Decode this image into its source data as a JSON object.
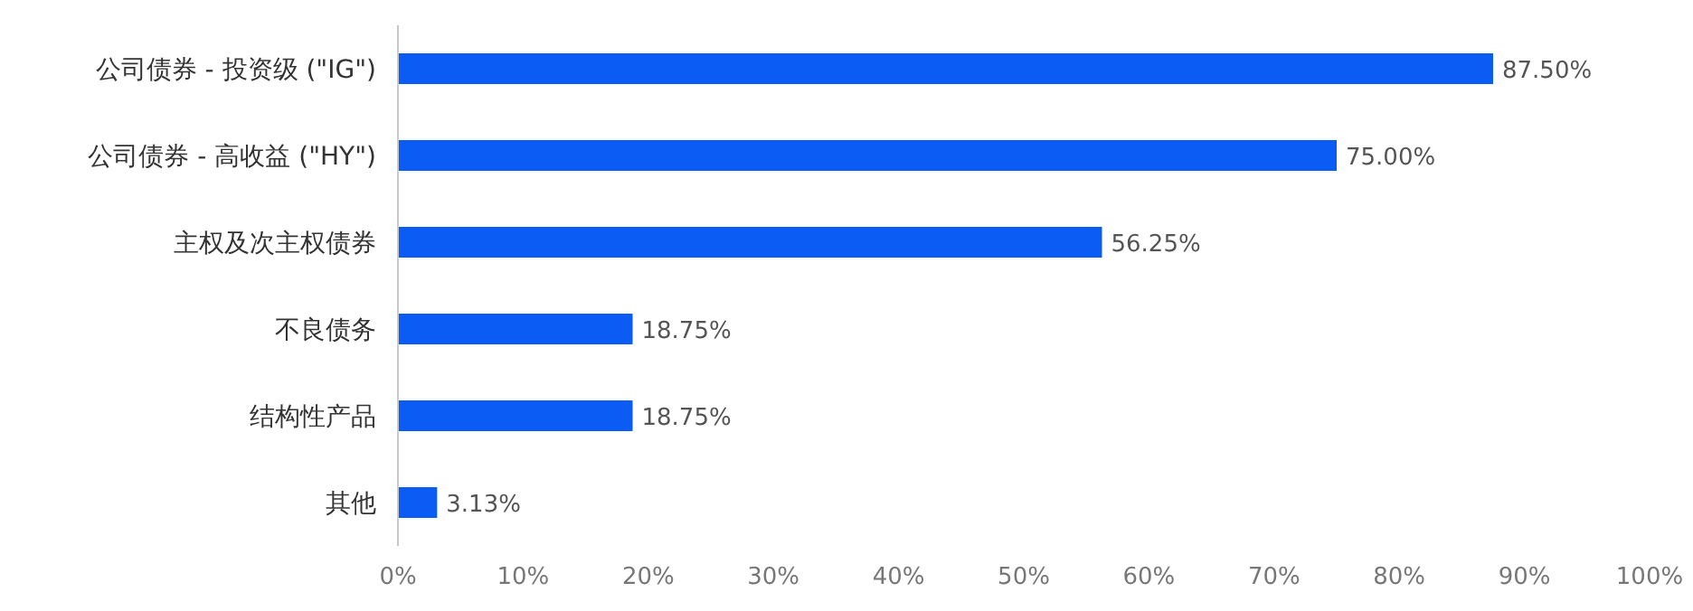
{
  "chart_data": {
    "type": "bar",
    "orientation": "horizontal",
    "categories": [
      "公司债券 - 投资级 (\"IG\")",
      "公司债券 - 高收益 (\"HY\")",
      "主权及次主权债券",
      "不良债务",
      "结构性产品",
      "其他"
    ],
    "values": [
      87.5,
      75.0,
      56.25,
      18.75,
      18.75,
      3.13
    ],
    "value_labels": [
      "87.50%",
      "75.00%",
      "56.25%",
      "18.75%",
      "18.75%",
      "3.13%"
    ],
    "color": "#0b5cf4",
    "xlim": [
      0,
      100
    ],
    "xticks": [
      {
        "value": 0,
        "label": "0%"
      },
      {
        "value": 10,
        "label": "10%"
      },
      {
        "value": 20,
        "label": "20%"
      },
      {
        "value": 30,
        "label": "30%"
      },
      {
        "value": 40,
        "label": "40%"
      },
      {
        "value": 50,
        "label": "50%"
      },
      {
        "value": 60,
        "label": "60%"
      },
      {
        "value": 70,
        "label": "70%"
      },
      {
        "value": 80,
        "label": "80%"
      },
      {
        "value": 90,
        "label": "90%"
      },
      {
        "value": 100,
        "label": "100%"
      }
    ],
    "grid": false
  }
}
